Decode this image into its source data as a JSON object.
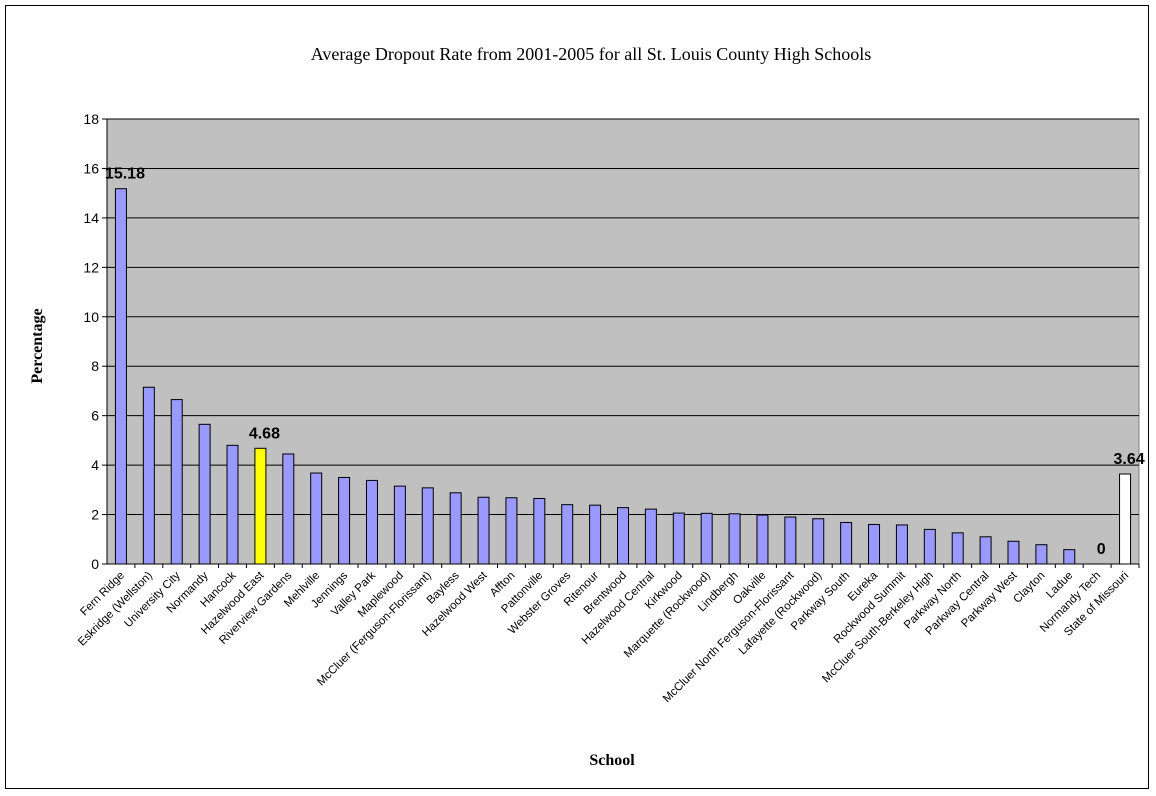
{
  "chart_data": {
    "type": "bar",
    "title": "Average Dropout Rate from 2001-2005 for all St. Louis County High Schools",
    "xlabel": "School",
    "ylabel": "Percentage",
    "ylim": [
      0,
      18
    ],
    "yticks": [
      0,
      2,
      4,
      6,
      8,
      10,
      12,
      14,
      16,
      18
    ],
    "grid": true,
    "legend": "none",
    "colors": {
      "plot_background": "#C0C0C0",
      "default_bar": "#9999FF",
      "highlight_bar": "#FFFF00",
      "state_bar": "#FFFFFF",
      "bar_outline": "#000000"
    },
    "categories": [
      "Fern Ridge",
      "Eskridge (Wellston)",
      "University City",
      "Normandy",
      "Hancock",
      "Hazelwood East",
      "Riverview Gardens",
      "Mehlville",
      "Jennings",
      "Valley Park",
      "Maplewood",
      "McCluer (Ferguson-Florissant)",
      "Bayless",
      "Hazelwood West",
      "Affton",
      "Pattonville",
      "Webster Groves",
      "Ritenour",
      "Brentwood",
      "Hazelwood Central",
      "Kirkwood",
      "Marquette (Rockwood)",
      "Lindbergh",
      "Oakville",
      "McCluer North Ferguson-Florissant",
      "Lafayette (Rockwood)",
      "Parkway South",
      "Eureka",
      "Rockwood Summit",
      "McCluer South-Berkeley High",
      "Parkway North",
      "Parkway Central",
      "Parkway West",
      "Clayton",
      "Ladue",
      "Normandy Tech",
      "State of Missouri"
    ],
    "values": [
      15.18,
      7.15,
      6.65,
      5.65,
      4.8,
      4.68,
      4.45,
      3.68,
      3.5,
      3.38,
      3.15,
      3.08,
      2.88,
      2.7,
      2.68,
      2.65,
      2.4,
      2.38,
      2.28,
      2.22,
      2.06,
      2.05,
      2.03,
      1.98,
      1.9,
      1.83,
      1.68,
      1.6,
      1.58,
      1.4,
      1.26,
      1.1,
      0.92,
      0.78,
      0.58,
      0,
      3.64
    ],
    "highlight_index": 5,
    "state_index": 36,
    "data_labels": [
      {
        "index": 0,
        "text": "15.18"
      },
      {
        "index": 5,
        "text": "4.68"
      },
      {
        "index": 35,
        "text": "0"
      },
      {
        "index": 36,
        "text": "3.64"
      }
    ]
  }
}
